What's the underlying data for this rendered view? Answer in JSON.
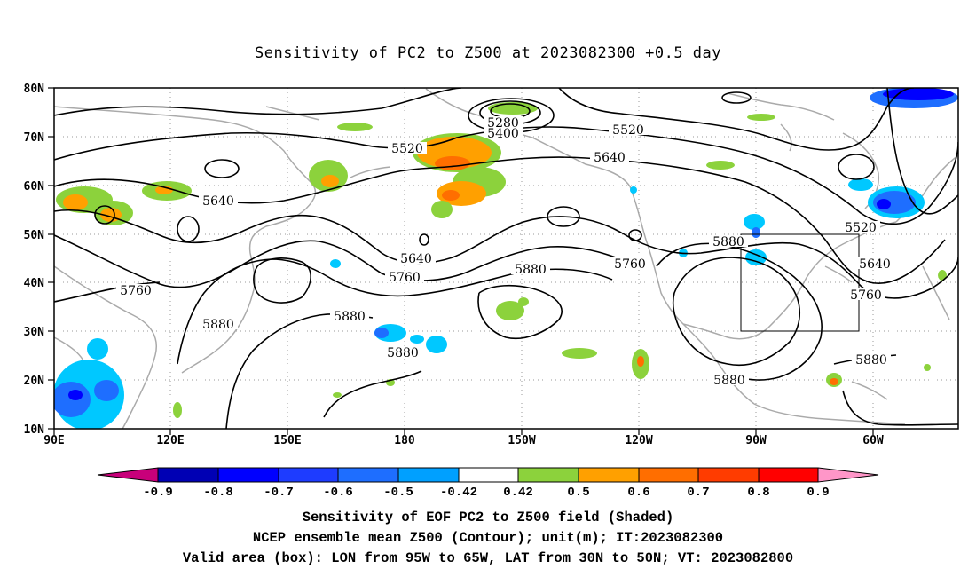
{
  "title": "Sensitivity of PC2 to Z500 at 2023082300 +0.5 day",
  "lat_labels": [
    "80N",
    "70N",
    "60N",
    "50N",
    "40N",
    "30N",
    "20N",
    "10N"
  ],
  "lon_labels": [
    "90E",
    "120E",
    "150E",
    "180",
    "150W",
    "120W",
    "90W",
    "60W"
  ],
  "contour_labels": [
    "5280",
    "5400",
    "5520",
    "5520",
    "5520",
    "5640",
    "5640",
    "5640",
    "5640",
    "5760",
    "5760",
    "5760",
    "5760",
    "5880",
    "5880",
    "5880",
    "5880",
    "5880",
    "5880",
    "5880"
  ],
  "colorbar": {
    "ticks": [
      "-0.9",
      "-0.8",
      "-0.7",
      "-0.6",
      "-0.5",
      "-0.42",
      "0.42",
      "0.5",
      "0.6",
      "0.7",
      "0.8",
      "0.9"
    ],
    "colors": [
      "#c8007a",
      "#0000b4",
      "#0000ff",
      "#1e3cff",
      "#1e6eff",
      "#00a0ff",
      "#00c8ff",
      "#ffffff",
      "#8cd23c",
      "#ffa000",
      "#ff6e00",
      "#ff3c00",
      "#ff0000",
      "#ff96c8"
    ]
  },
  "captions": [
    "Sensitivity of EOF PC2 to Z500 field (Shaded)",
    "NCEP ensemble mean Z500 (Contour); unit(m); IT:2023082300",
    "Valid area (box): LON from 95W to 65W, LAT from 30N to 50N; VT: 2023082800"
  ],
  "colors": {
    "contour": "#000000",
    "coast": "#aaaaaa",
    "grid": "#999999"
  }
}
